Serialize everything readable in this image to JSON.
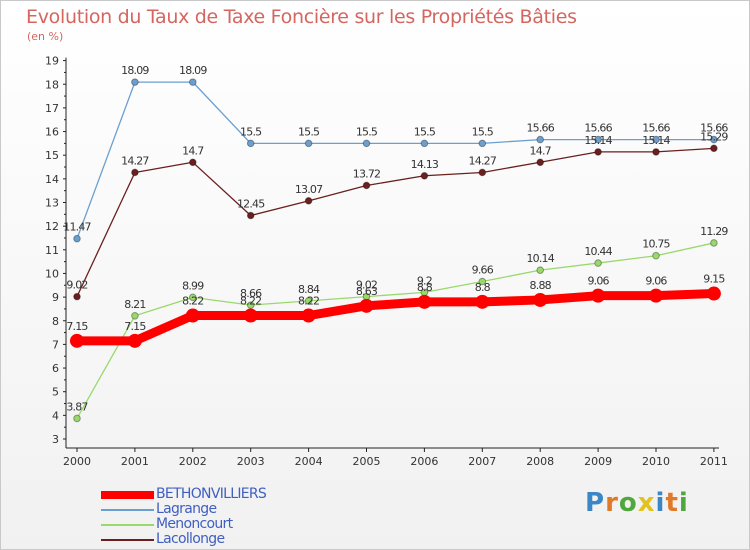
{
  "title": "Evolution du Taux de Taxe Foncière sur les Propriétés Bâties",
  "subtitle": "(en %)",
  "logo": {
    "letters": [
      "P",
      "r",
      "o",
      "x",
      "i",
      "t",
      "i"
    ],
    "colors": [
      "#3a86c6",
      "#e07a28",
      "#4fa83d",
      "#e2c21c",
      "#3a86c6",
      "#e07a28",
      "#4fa83d"
    ]
  },
  "chart_data": {
    "type": "line",
    "categories": [
      "2000",
      "2001",
      "2002",
      "2003",
      "2004",
      "2005",
      "2006",
      "2007",
      "2008",
      "2009",
      "2010",
      "2011"
    ],
    "yticks": [
      "3",
      "4",
      "5",
      "6",
      "7",
      "8",
      "9",
      "10",
      "11",
      "12",
      "13",
      "14",
      "15",
      "16",
      "17",
      "18",
      "19"
    ],
    "ylim": [
      3,
      19
    ],
    "grid": false,
    "legend_position": "bottom-left",
    "series": [
      {
        "name": "BETHONVILLIERS",
        "color": "#ff0000",
        "emphasis": true,
        "values": [
          7.15,
          7.15,
          8.22,
          8.22,
          8.22,
          8.63,
          8.8,
          8.8,
          8.88,
          9.06,
          9.06,
          9.15
        ],
        "labels": [
          "7.15",
          "7.15",
          "8.22",
          "8.22",
          "8.22",
          "8.63",
          "8.8",
          "8.8",
          "8.88",
          "9.06",
          "9.06",
          "9.15"
        ]
      },
      {
        "name": "Lagrange",
        "color": "#6a9fcf",
        "emphasis": false,
        "values": [
          11.47,
          18.09,
          18.09,
          15.5,
          15.5,
          15.5,
          15.5,
          15.5,
          15.66,
          15.66,
          15.66,
          15.66
        ],
        "labels": [
          "11.47",
          "18.09",
          "18.09",
          "15.5",
          "15.5",
          "15.5",
          "15.5",
          "15.5",
          "15.66",
          "15.66",
          "15.66",
          "15.66"
        ]
      },
      {
        "name": "Menoncourt",
        "color": "#99d96b",
        "emphasis": false,
        "values": [
          3.87,
          8.21,
          8.99,
          8.66,
          8.84,
          9.02,
          9.2,
          9.66,
          10.14,
          10.44,
          10.75,
          11.29
        ],
        "labels": [
          "3.87",
          "8.21",
          "8.99",
          "8.66",
          "8.84",
          "9.02",
          "9.2",
          "9.66",
          "10.14",
          "10.44",
          "10.75",
          "11.29"
        ]
      },
      {
        "name": "Lacollonge",
        "color": "#6b1f1f",
        "emphasis": false,
        "values": [
          9.02,
          14.27,
          14.7,
          12.45,
          13.07,
          13.72,
          14.13,
          14.27,
          14.7,
          15.14,
          15.14,
          15.29
        ],
        "labels": [
          "9.02",
          "14.27",
          "14.7",
          "12.45",
          "13.07",
          "13.72",
          "14.13",
          "14.27",
          "14.7",
          "15.14",
          "15.14",
          "15.29"
        ]
      }
    ]
  }
}
